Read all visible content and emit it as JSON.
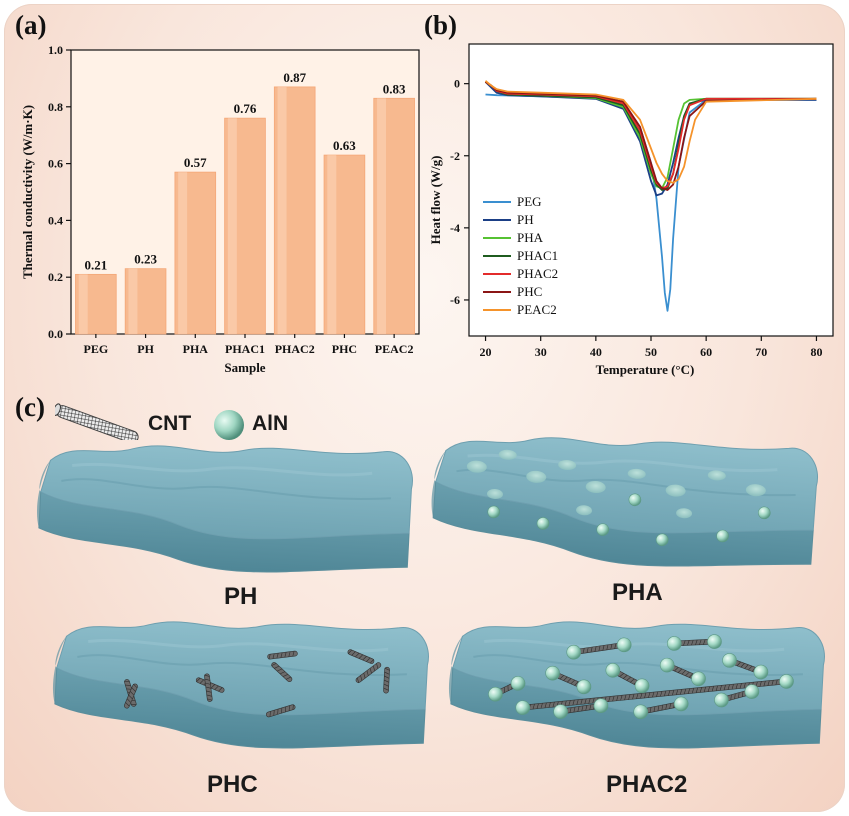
{
  "panels": {
    "a": "(a)",
    "b": "(b)",
    "c": "(c)"
  },
  "chart_data": [
    {
      "type": "bar",
      "categories": [
        "PEG",
        "PH",
        "PHA",
        "PHAC1",
        "PHAC2",
        "PHC",
        "PEAC2"
      ],
      "values": [
        0.21,
        0.23,
        0.57,
        0.76,
        0.87,
        0.63,
        0.83
      ],
      "data_labels": [
        "0.21",
        "0.23",
        "0.57",
        "0.76",
        "0.87",
        "0.63",
        "0.83"
      ],
      "xlabel": "Sample",
      "ylabel": "Thermal conductivity (W/m·K)",
      "ylim": [
        0,
        1.0
      ],
      "yticks": [
        "0.0",
        "0.2",
        "0.4",
        "0.6",
        "0.8",
        "1.0"
      ],
      "bar_color": "#f7b98f",
      "grid": false
    },
    {
      "type": "line",
      "xlabel": "Temperature (°C)",
      "ylabel": "Heat flow (W/g)",
      "xlim": [
        17,
        83
      ],
      "ylim": [
        -7,
        1.1
      ],
      "xticks": [
        "20",
        "30",
        "40",
        "50",
        "60",
        "70",
        "80"
      ],
      "yticks": [
        "0",
        "-2",
        "-4",
        "-6"
      ],
      "legend_position": "left-bottom",
      "grid": false,
      "series": [
        {
          "name": "PEG",
          "color": "#3a8fd0",
          "x": [
            20,
            22,
            30,
            40,
            45,
            48,
            50,
            51,
            52,
            52.5,
            53,
            53.5,
            54,
            55,
            57,
            60,
            80
          ],
          "y": [
            -0.3,
            -0.32,
            -0.35,
            -0.4,
            -0.6,
            -1.2,
            -2.2,
            -3.2,
            -4.8,
            -5.8,
            -6.3,
            -5.7,
            -4.3,
            -2.3,
            -0.8,
            -0.45,
            -0.45
          ]
        },
        {
          "name": "PH",
          "color": "#1b3f86",
          "x": [
            20,
            21,
            22,
            24,
            30,
            40,
            45,
            48,
            50,
            51,
            52,
            53,
            54,
            55,
            56,
            57,
            60,
            80
          ],
          "y": [
            0.05,
            -0.1,
            -0.25,
            -0.32,
            -0.35,
            -0.42,
            -0.7,
            -1.6,
            -2.7,
            -3.1,
            -3.05,
            -2.8,
            -2.2,
            -1.5,
            -0.9,
            -0.55,
            -0.45,
            -0.45
          ]
        },
        {
          "name": "PHA",
          "color": "#56c232",
          "x": [
            20,
            21,
            22,
            24,
            30,
            40,
            45,
            48,
            50,
            51,
            52,
            53,
            54,
            55,
            56,
            57,
            60,
            80
          ],
          "y": [
            0.05,
            -0.05,
            -0.2,
            -0.3,
            -0.33,
            -0.4,
            -0.65,
            -1.5,
            -2.5,
            -2.85,
            -2.9,
            -2.6,
            -1.8,
            -1.0,
            -0.55,
            -0.45,
            -0.42,
            -0.42
          ]
        },
        {
          "name": "PHAC1",
          "color": "#1f5c1f",
          "x": [
            20,
            21,
            22,
            24,
            30,
            40,
            45,
            48,
            50,
            51,
            52,
            53,
            54,
            55,
            56,
            57,
            60,
            80
          ],
          "y": [
            0.05,
            -0.05,
            -0.2,
            -0.3,
            -0.33,
            -0.38,
            -0.6,
            -1.4,
            -2.4,
            -2.8,
            -2.95,
            -2.9,
            -2.5,
            -1.7,
            -0.9,
            -0.55,
            -0.42,
            -0.42
          ]
        },
        {
          "name": "PHAC2",
          "color": "#e32b2b",
          "x": [
            20,
            21,
            22,
            24,
            30,
            40,
            45,
            48,
            50,
            51,
            52,
            53,
            54,
            55,
            56,
            57,
            60,
            80
          ],
          "y": [
            0.05,
            -0.05,
            -0.2,
            -0.28,
            -0.3,
            -0.35,
            -0.55,
            -1.3,
            -2.3,
            -2.75,
            -2.9,
            -2.85,
            -2.5,
            -1.8,
            -1.0,
            -0.6,
            -0.42,
            -0.42
          ]
        },
        {
          "name": "PHC",
          "color": "#8b1515",
          "x": [
            20,
            21,
            22,
            24,
            30,
            40,
            45,
            48,
            50,
            51,
            52,
            53,
            54,
            55,
            56,
            57,
            60,
            80
          ],
          "y": [
            0.05,
            -0.05,
            -0.18,
            -0.25,
            -0.28,
            -0.33,
            -0.5,
            -1.2,
            -2.2,
            -2.7,
            -2.9,
            -2.95,
            -2.8,
            -2.3,
            -1.5,
            -0.9,
            -0.48,
            -0.42
          ]
        },
        {
          "name": "PEAC2",
          "color": "#f5932b",
          "x": [
            20,
            21,
            22,
            24,
            30,
            40,
            45,
            48,
            50,
            51,
            52,
            53,
            54,
            55,
            56,
            57,
            58,
            60,
            80
          ],
          "y": [
            0.08,
            -0.05,
            -0.15,
            -0.22,
            -0.25,
            -0.3,
            -0.45,
            -1.0,
            -1.8,
            -2.2,
            -2.5,
            -2.7,
            -2.75,
            -2.65,
            -2.3,
            -1.6,
            -1.0,
            -0.5,
            -0.42
          ]
        }
      ]
    }
  ],
  "legend_key": {
    "cnt_label": "CNT",
    "aln_label": "AlN"
  },
  "models": {
    "ph_label": "PH",
    "pha_label": "PHA",
    "phc_label": "PHC",
    "phac2_label": "PHAC2"
  },
  "colors": {
    "matrix": "#78aab7",
    "matrix_dark": "#5d93a2",
    "matrix_light": "#9cc6d1",
    "aln": "#9fd6c2",
    "cnt": "#4d4d4d"
  }
}
